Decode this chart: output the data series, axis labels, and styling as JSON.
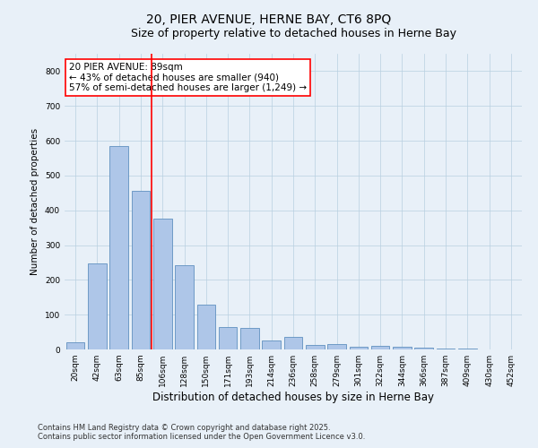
{
  "title": "20, PIER AVENUE, HERNE BAY, CT6 8PQ",
  "subtitle": "Size of property relative to detached houses in Herne Bay",
  "xlabel": "Distribution of detached houses by size in Herne Bay",
  "ylabel": "Number of detached properties",
  "categories": [
    "20sqm",
    "42sqm",
    "63sqm",
    "85sqm",
    "106sqm",
    "128sqm",
    "150sqm",
    "171sqm",
    "193sqm",
    "214sqm",
    "236sqm",
    "258sqm",
    "279sqm",
    "301sqm",
    "322sqm",
    "344sqm",
    "366sqm",
    "387sqm",
    "409sqm",
    "430sqm",
    "452sqm"
  ],
  "values": [
    20,
    248,
    585,
    455,
    375,
    243,
    128,
    65,
    62,
    25,
    35,
    12,
    15,
    8,
    10,
    8,
    4,
    3,
    2,
    1,
    1
  ],
  "bar_color": "#aec6e8",
  "bar_edge_color": "#6090c0",
  "vline_x": 3.5,
  "vline_color": "red",
  "annotation_text": "20 PIER AVENUE: 89sqm\n← 43% of detached houses are smaller (940)\n57% of semi-detached houses are larger (1,249) →",
  "annotation_box_color": "white",
  "annotation_box_edge_color": "red",
  "ylim": [
    0,
    850
  ],
  "yticks": [
    0,
    100,
    200,
    300,
    400,
    500,
    600,
    700,
    800
  ],
  "grid_color": "#b8cfe0",
  "background_color": "#e8f0f8",
  "footer": "Contains HM Land Registry data © Crown copyright and database right 2025.\nContains public sector information licensed under the Open Government Licence v3.0.",
  "title_fontsize": 10,
  "subtitle_fontsize": 9,
  "xlabel_fontsize": 8.5,
  "ylabel_fontsize": 7.5,
  "tick_fontsize": 6.5,
  "footer_fontsize": 6,
  "annot_fontsize": 7.5
}
